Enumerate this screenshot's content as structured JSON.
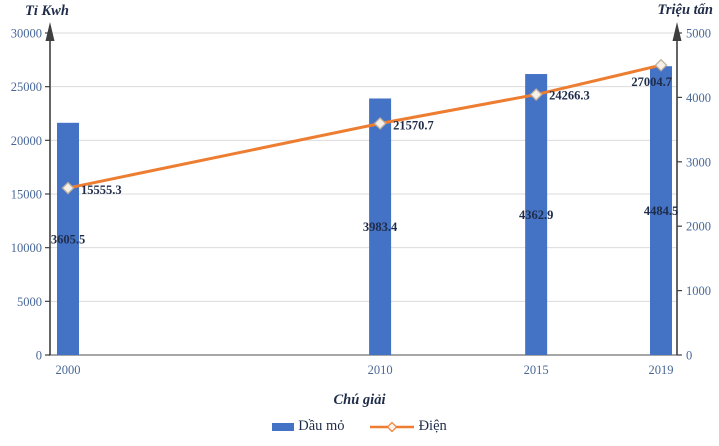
{
  "axes": {
    "left_title": "Tỉ Kwh",
    "right_title": "Triệu tấn"
  },
  "colors": {
    "bar": "#4472C4",
    "line": "#ED7D31",
    "marker_fill": "#F6F0E7",
    "marker_stroke": "#BFB2A1",
    "grid": "#DBDBDB",
    "baseline": "#A6A6A6",
    "axis": "#3F3F3F",
    "tick_text": "#486898",
    "label_text": "#1F2C49"
  },
  "chart_data": {
    "type": "combo",
    "x": [
      2000,
      2010,
      2015,
      2019
    ],
    "x_labels": [
      "2000",
      "2010",
      "2015",
      "2019"
    ],
    "series": [
      {
        "name": "Dầu mỏ",
        "type": "bar",
        "axis": "right",
        "values": [
          3605.5,
          3983.4,
          4362.9,
          4484.5
        ],
        "data_labels": [
          "3605.5",
          "3983.4",
          "4362.9",
          "4484.5"
        ],
        "label_position": "inside-center"
      },
      {
        "name": "Điện",
        "type": "line",
        "axis": "left",
        "marker": "diamond",
        "values": [
          15555.3,
          21570.7,
          24266.3,
          27004.7
        ],
        "data_labels": [
          "15555.3",
          "21570.7",
          "24266.3",
          "27004.7"
        ],
        "label_position": "right-of-marker"
      }
    ],
    "left_axis": {
      "label": "Tỉ Kwh",
      "range": [
        0,
        30000
      ],
      "tick_step": 5000,
      "ticks": [
        0,
        5000,
        10000,
        15000,
        20000,
        25000,
        30000
      ]
    },
    "right_axis": {
      "label": "Triệu tấn",
      "range": [
        0,
        5000
      ],
      "tick_step": 1000,
      "ticks": [
        0,
        1000,
        2000,
        3000,
        4000,
        5000
      ]
    },
    "grid": true,
    "legend_position": "bottom",
    "legend_title": "Chú giải"
  }
}
